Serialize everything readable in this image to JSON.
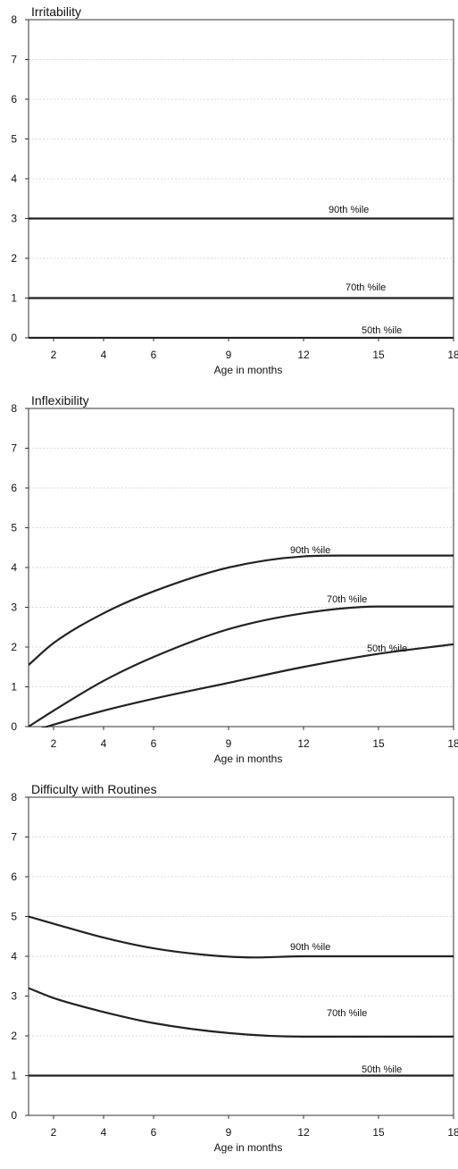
{
  "chart_data": [
    {
      "type": "line",
      "title": "Irritability",
      "xlabel": "Age in months",
      "ylabel": "",
      "xlim": [
        1,
        18
      ],
      "ylim": [
        0,
        8
      ],
      "x_ticks": [
        2,
        4,
        6,
        9,
        12,
        15,
        18
      ],
      "y_ticks": [
        0,
        1,
        2,
        3,
        4,
        5,
        6,
        7,
        8
      ],
      "grid": true,
      "series": [
        {
          "label": "90th %ile",
          "x": [
            1,
            18
          ],
          "y": [
            3,
            3
          ]
        },
        {
          "label": "70th %ile",
          "x": [
            1,
            18
          ],
          "y": [
            1,
            1
          ]
        },
        {
          "label": "50th %ile",
          "x": [
            1,
            18
          ],
          "y": [
            0,
            0
          ]
        }
      ]
    },
    {
      "type": "line",
      "title": "Inflexibility",
      "xlabel": "Age in months",
      "ylabel": "",
      "xlim": [
        1,
        18
      ],
      "ylim": [
        0,
        8
      ],
      "x_ticks": [
        2,
        4,
        6,
        9,
        12,
        15,
        18
      ],
      "y_ticks": [
        0,
        1,
        2,
        3,
        4,
        5,
        6,
        7,
        8
      ],
      "grid": true,
      "series": [
        {
          "label": "90th %ile",
          "x": [
            1,
            2,
            4,
            6,
            9,
            12,
            13.5,
            15,
            18
          ],
          "y": [
            1.55,
            2.1,
            2.85,
            3.4,
            4.0,
            4.28,
            4.3,
            4.3,
            4.3
          ]
        },
        {
          "label": "70th %ile",
          "x": [
            1,
            2,
            4,
            6,
            9,
            12,
            15,
            18
          ],
          "y": [
            0,
            0.4,
            1.15,
            1.75,
            2.45,
            2.85,
            3.02,
            3.02
          ]
        },
        {
          "label": "50th %ile",
          "x": [
            1,
            2,
            4,
            6,
            9,
            12,
            15,
            18
          ],
          "y": [
            -0.15,
            0.05,
            0.4,
            0.7,
            1.1,
            1.5,
            1.83,
            2.07
          ]
        }
      ]
    },
    {
      "type": "line",
      "title": "Difficulty with Routines",
      "xlabel": "Age in months",
      "ylabel": "",
      "xlim": [
        1,
        18
      ],
      "ylim": [
        0,
        8
      ],
      "x_ticks": [
        2,
        4,
        6,
        9,
        12,
        15,
        18
      ],
      "y_ticks": [
        0,
        1,
        2,
        3,
        4,
        5,
        6,
        7,
        8
      ],
      "grid": true,
      "series": [
        {
          "label": "90th %ile",
          "x": [
            1,
            2,
            4,
            6,
            8,
            10,
            12,
            15,
            18
          ],
          "y": [
            5.0,
            4.82,
            4.47,
            4.2,
            4.04,
            3.97,
            4.0,
            4.0,
            4.0
          ]
        },
        {
          "label": "70th %ile",
          "x": [
            1,
            2,
            4,
            6,
            9,
            12,
            15,
            18
          ],
          "y": [
            3.2,
            2.95,
            2.6,
            2.32,
            2.07,
            1.98,
            1.98,
            1.98
          ]
        },
        {
          "label": "50th %ile",
          "x": [
            1,
            18
          ],
          "y": [
            1,
            1
          ]
        }
      ]
    }
  ]
}
